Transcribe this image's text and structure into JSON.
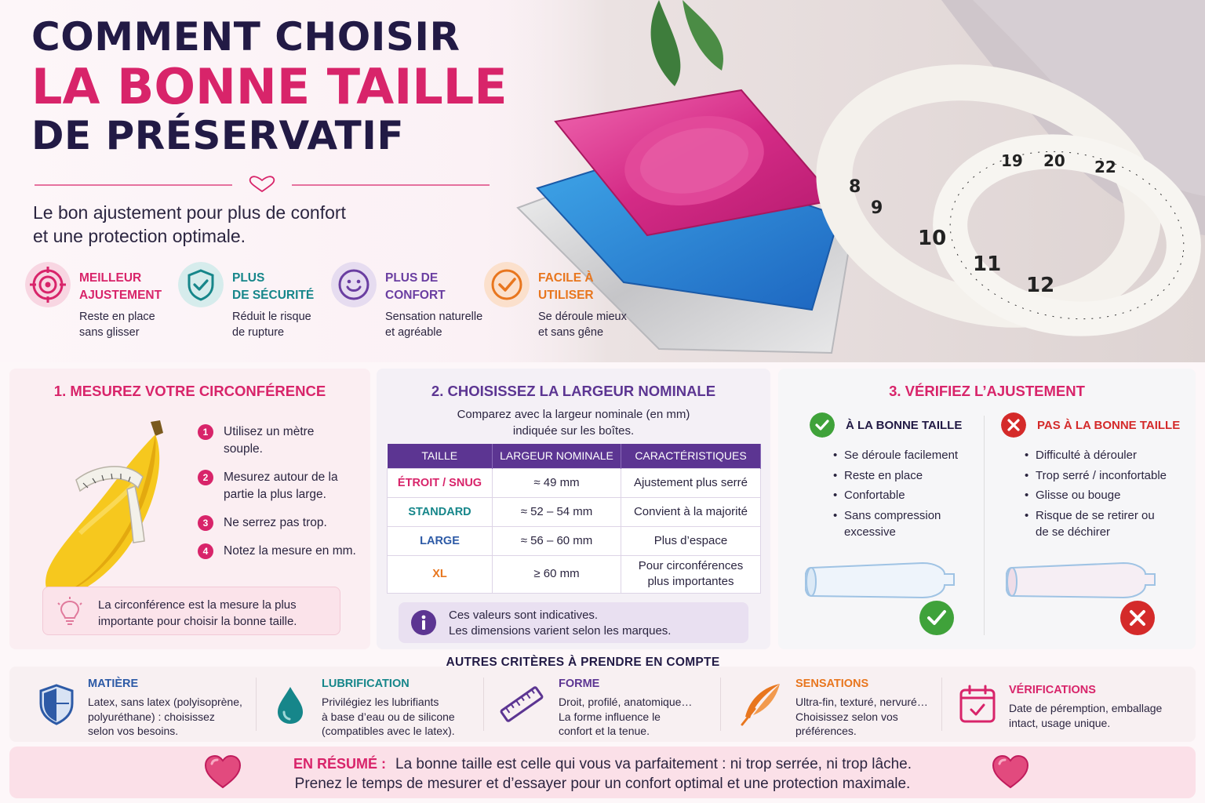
{
  "header": {
    "title_line1": "COMMENT CHOISIR",
    "title_line2": "LA BONNE TAILLE",
    "title_line3": "DE PRÉSERVATIF",
    "subtitle_line1": "Le bon ajustement pour plus de confort",
    "subtitle_line2": "et une protection optimale."
  },
  "benefits": [
    {
      "title1": "MEILLEUR",
      "title2": "AJUSTEMENT",
      "desc1": "Reste en place",
      "desc2": "sans glisser",
      "icon": "target-icon",
      "color": "#d8246a"
    },
    {
      "title1": "PLUS",
      "title2": "DE SÉCURITÉ",
      "desc1": "Réduit le risque",
      "desc2": "de rupture",
      "icon": "shield-check-icon",
      "color": "#16868a"
    },
    {
      "title1": "PLUS DE",
      "title2": "CONFORT",
      "desc1": "Sensation naturelle",
      "desc2": "et agréable",
      "icon": "smiley-icon",
      "color": "#6a3ea1"
    },
    {
      "title1": "FACILE À",
      "title2": "UTILISER",
      "desc1": "Se déroule mieux",
      "desc2": "et sans gêne",
      "icon": "check-circle-icon",
      "color": "#e8761e"
    }
  ],
  "photo": {
    "tape_numbers": [
      "8",
      "9",
      "10",
      "11",
      "12",
      "19",
      "20",
      "22"
    ]
  },
  "step1": {
    "title": "1. MESUREZ VOTRE CIRCONFÉRENCE",
    "steps": [
      {
        "num": "1",
        "line1": "Utilisez un mètre",
        "line2": "souple."
      },
      {
        "num": "2",
        "line1": "Mesurez autour de la",
        "line2": "partie la plus large."
      },
      {
        "num": "3",
        "line1": "Ne serrez pas trop.",
        "line2": ""
      },
      {
        "num": "4",
        "line1": "Notez la mesure en mm.",
        "line2": ""
      }
    ],
    "tip_line1": "La circonférence est la mesure la plus",
    "tip_line2": "importante pour choisir la bonne taille."
  },
  "step2": {
    "title": "2. CHOISISSEZ LA LARGEUR NOMINALE",
    "subtitle_line1": "Comparez avec la largeur nominale (en mm)",
    "subtitle_line2": "indiquée sur les boîtes.",
    "headers": [
      "TAILLE",
      "LARGEUR NOMINALE",
      "CARACTÉRISTIQUES"
    ],
    "rows": [
      {
        "size": "ÉTROIT / SNUG",
        "width": "≈ 49 mm",
        "feature1": "Ajustement plus serré",
        "feature2": "",
        "color": "#d8246a"
      },
      {
        "size": "STANDARD",
        "width": "≈ 52 – 54 mm",
        "feature1": "Convient à la majorité",
        "feature2": "",
        "color": "#16868a"
      },
      {
        "size": "LARGE",
        "width": "≈ 56 – 60 mm",
        "feature1": "Plus d’espace",
        "feature2": "",
        "color": "#2d5aa6"
      },
      {
        "size": "XL",
        "width": "≥ 60 mm",
        "feature1": "Pour circonférences",
        "feature2": "plus importantes",
        "color": "#e8761e"
      }
    ],
    "note_line1": "Ces valeurs sont indicatives.",
    "note_line2": "Les dimensions varient selon les marques."
  },
  "step3": {
    "title": "3. VÉRIFIEZ L’AJUSTEMENT",
    "good": {
      "label": "À LA BONNE TAILLE",
      "items": [
        "Se déroule facilement",
        "Reste en place",
        "Confortable",
        "Sans compression excessive"
      ]
    },
    "bad": {
      "label": "PAS À LA BONNE TAILLE",
      "items": [
        "Difficulté à dérouler",
        "Trop serré / inconfortable",
        "Glisse ou bouge",
        "Risque de se retirer ou de se déchirer"
      ]
    }
  },
  "criteria": {
    "title": "AUTRES CRITÈRES À PRENDRE EN COMPTE",
    "items": [
      {
        "title": "MATIÈRE",
        "l1": "Latex, sans latex (polyisoprène,",
        "l2": "polyuréthane) : choisissez",
        "l3": "selon vos besoins.",
        "icon": "shield-material-icon",
        "color": "#2d5aa6"
      },
      {
        "title": "LUBRIFICATION",
        "l1": "Privilégiez les lubrifiants",
        "l2": "à base d’eau ou de silicone",
        "l3": "(compatibles avec le latex).",
        "icon": "drop-icon",
        "color": "#16868a"
      },
      {
        "title": "FORME",
        "l1": "Droit, profilé, anatomique…",
        "l2": "La forme influence le",
        "l3": "confort et la tenue.",
        "icon": "ruler-icon",
        "color": "#5c3592"
      },
      {
        "title": "SENSATIONS",
        "l1": "Ultra-fin, texturé, nervuré…",
        "l2": "Choisissez selon vos",
        "l3": "préférences.",
        "icon": "feather-icon",
        "color": "#e8761e"
      },
      {
        "title": "VÉRIFICATIONS",
        "l1": "Date de péremption, emballage",
        "l2": "intact, usage unique.",
        "l3": "",
        "icon": "calendar-check-icon",
        "color": "#d8246a"
      }
    ]
  },
  "summary": {
    "label": "EN RÉSUMÉ :",
    "line1": "La bonne taille est celle qui vous va parfaitement : ni trop serrée, ni trop lâche.",
    "line2": "Prenez le temps de mesurer et d’essayer pour un confort optimal et une protection maximale."
  }
}
